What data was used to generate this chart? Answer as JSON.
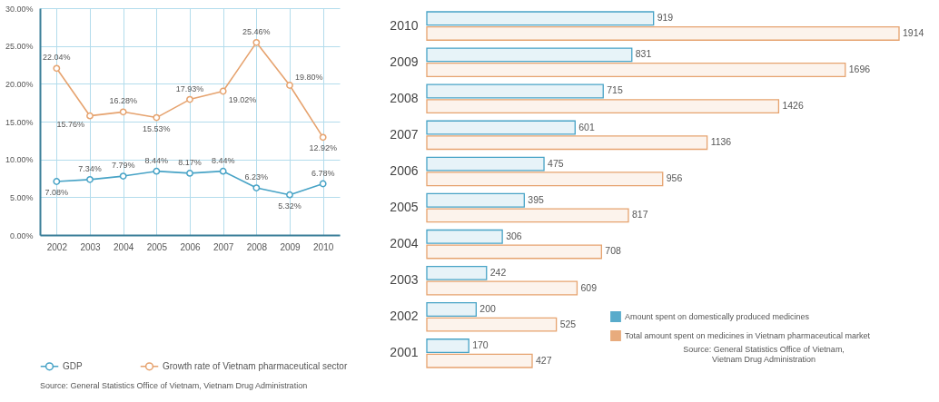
{
  "chart_data": [
    {
      "type": "line",
      "categories": [
        "2002",
        "2003",
        "2004",
        "2005",
        "2006",
        "2007",
        "2008",
        "2009",
        "2010"
      ],
      "series": [
        {
          "name": "GDP",
          "color": "#47a3c6",
          "values": [
            7.08,
            7.34,
            7.79,
            8.44,
            8.17,
            8.44,
            6.23,
            5.32,
            6.78
          ],
          "value_labels": [
            "7.08%",
            "7.34%",
            "7.79%",
            "8.44%",
            "8.17%",
            "8.44%",
            "6.23%",
            "5.32%",
            "6.78%"
          ]
        },
        {
          "name": "Growth rate of Vietnam pharmaceutical sector",
          "color": "#e6a36f",
          "values": [
            22.04,
            15.76,
            16.28,
            15.53,
            17.93,
            19.02,
            25.46,
            19.8,
            12.92
          ],
          "value_labels": [
            "22.04%",
            "15.76%",
            "16.28%",
            "15.53%",
            "17.93%",
            "19.02%",
            "25.46%",
            "19.80%",
            "12.92%"
          ]
        }
      ],
      "ylim": [
        0,
        30
      ],
      "yticks": [
        {
          "value": 0,
          "label": "0.00%"
        },
        {
          "value": 5,
          "label": "5.00%"
        },
        {
          "value": 10,
          "label": "10.00%"
        },
        {
          "value": 15,
          "label": "15.00%"
        },
        {
          "value": 20,
          "label": "20.00%"
        },
        {
          "value": 25,
          "label": "25.00%"
        },
        {
          "value": 30,
          "label": "30.00%"
        }
      ],
      "grid": true,
      "legend": "bottom",
      "marker": "circle",
      "line_style": "solid",
      "annotations": [
        "Source: General Statistics Office of Vietnam, Vietnam Drug Administration"
      ]
    },
    {
      "type": "bar",
      "orientation": "horizontal",
      "categories": [
        "2010",
        "2009",
        "2008",
        "2007",
        "2006",
        "2005",
        "2004",
        "2003",
        "2002",
        "2001"
      ],
      "series": [
        {
          "name": "Amount spent on domestically produced medicines",
          "color": "#47a3c6",
          "values": [
            919,
            831,
            715,
            601,
            475,
            395,
            306,
            242,
            200,
            170
          ]
        },
        {
          "name": "Total amount spent on medicines in Vietnam pharmaceutical market",
          "color": "#e6a36f",
          "values": [
            1914,
            1696,
            1426,
            1136,
            956,
            817,
            708,
            609,
            525,
            427
          ]
        }
      ],
      "data_labels": true,
      "legend": "bottom right",
      "annotations": [
        "Source: General Statistics Office of Vietnam,\nVietnam Drug Administration"
      ]
    }
  ]
}
